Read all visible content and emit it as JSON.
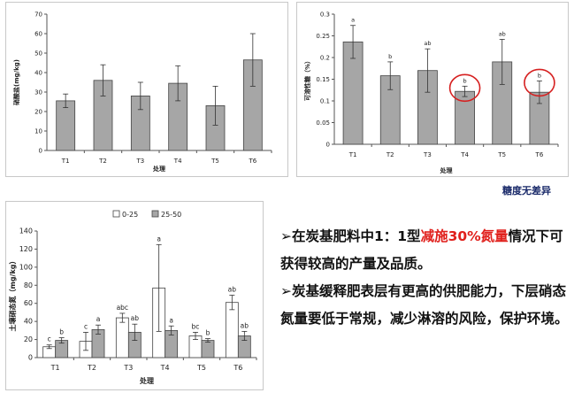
{
  "chart_data": [
    {
      "type": "bar",
      "ylabel": "硝酸盐(mg/kg)",
      "xlabel": "处理",
      "categories": [
        "T1",
        "T2",
        "T3",
        "T4",
        "T5",
        "T6"
      ],
      "series": [
        {
          "values": [
            25.5,
            36,
            28,
            34.5,
            23,
            46.5
          ],
          "errors": [
            3.5,
            8,
            7,
            9,
            10,
            13.5
          ]
        }
      ],
      "ylim": [
        0,
        70
      ],
      "yticks": [
        "0",
        "10",
        "20",
        "30",
        "40",
        "50",
        "60",
        "70"
      ],
      "grid": false,
      "color": "#a6a6a6"
    },
    {
      "type": "bar",
      "ylabel": "可溶性糖（%）",
      "xlabel": "处理",
      "categories": [
        "T1",
        "T2",
        "T3",
        "T4",
        "T5",
        "T6"
      ],
      "series": [
        {
          "values": [
            0.236,
            0.158,
            0.17,
            0.122,
            0.19,
            0.12
          ],
          "errors": [
            0.038,
            0.032,
            0.05,
            0.012,
            0.052,
            0.026
          ],
          "labels": [
            "a",
            "b",
            "ab",
            "b",
            "ab",
            "b"
          ]
        }
      ],
      "ylim": [
        0,
        0.3
      ],
      "yticks": [
        "0",
        "0.05",
        "0.1",
        "0.15",
        "0.2",
        "0.25",
        "0.3"
      ],
      "grid": false,
      "color": "#a6a6a6",
      "highlight": {
        "categories": [
          "T4",
          "T6"
        ],
        "color": "#d62020"
      }
    },
    {
      "type": "bar",
      "ylabel": "土壤硝态氮（mg/kg）",
      "xlabel": "处理",
      "categories": [
        "T1",
        "T2",
        "T3",
        "T4",
        "T5",
        "T6"
      ],
      "series": [
        {
          "name": "0-25",
          "values": [
            12,
            18,
            44,
            77,
            24,
            61
          ],
          "errors": [
            2,
            10,
            5,
            48,
            4,
            8
          ],
          "labels": [
            "c",
            "c",
            "abc",
            "a",
            "bc",
            "ab"
          ],
          "color": "#ffffff"
        },
        {
          "name": "25-50",
          "values": [
            19,
            31,
            28,
            30,
            19,
            24
          ],
          "errors": [
            3,
            5,
            9,
            5,
            2,
            5
          ],
          "labels": [
            "b",
            "a",
            "ab",
            "a",
            "b",
            "ab"
          ],
          "color": "#a6a6a6"
        }
      ],
      "ylim": [
        0,
        140
      ],
      "yticks": [
        "0",
        "20",
        "40",
        "60",
        "80",
        "100",
        "120",
        "140"
      ],
      "grid": false,
      "legend": "top"
    }
  ],
  "caption": "糖度无差异",
  "notes": [
    {
      "prefix": "➢在炭基肥料中1：1型",
      "emph": "减施30%氮量",
      "suffix": "情况下可获得较高的产量及品质。"
    },
    {
      "prefix": "➢炭基缓释肥表层有更高的供肥能力，下层硝态氮量要低于常规，减少淋溶的风险，保护环境。",
      "emph": "",
      "suffix": ""
    }
  ],
  "colors": {
    "bar": "#a6a6a6",
    "highlight": "#d62020",
    "emphasis": "#e0201c",
    "caption": "#1a2a6a"
  }
}
